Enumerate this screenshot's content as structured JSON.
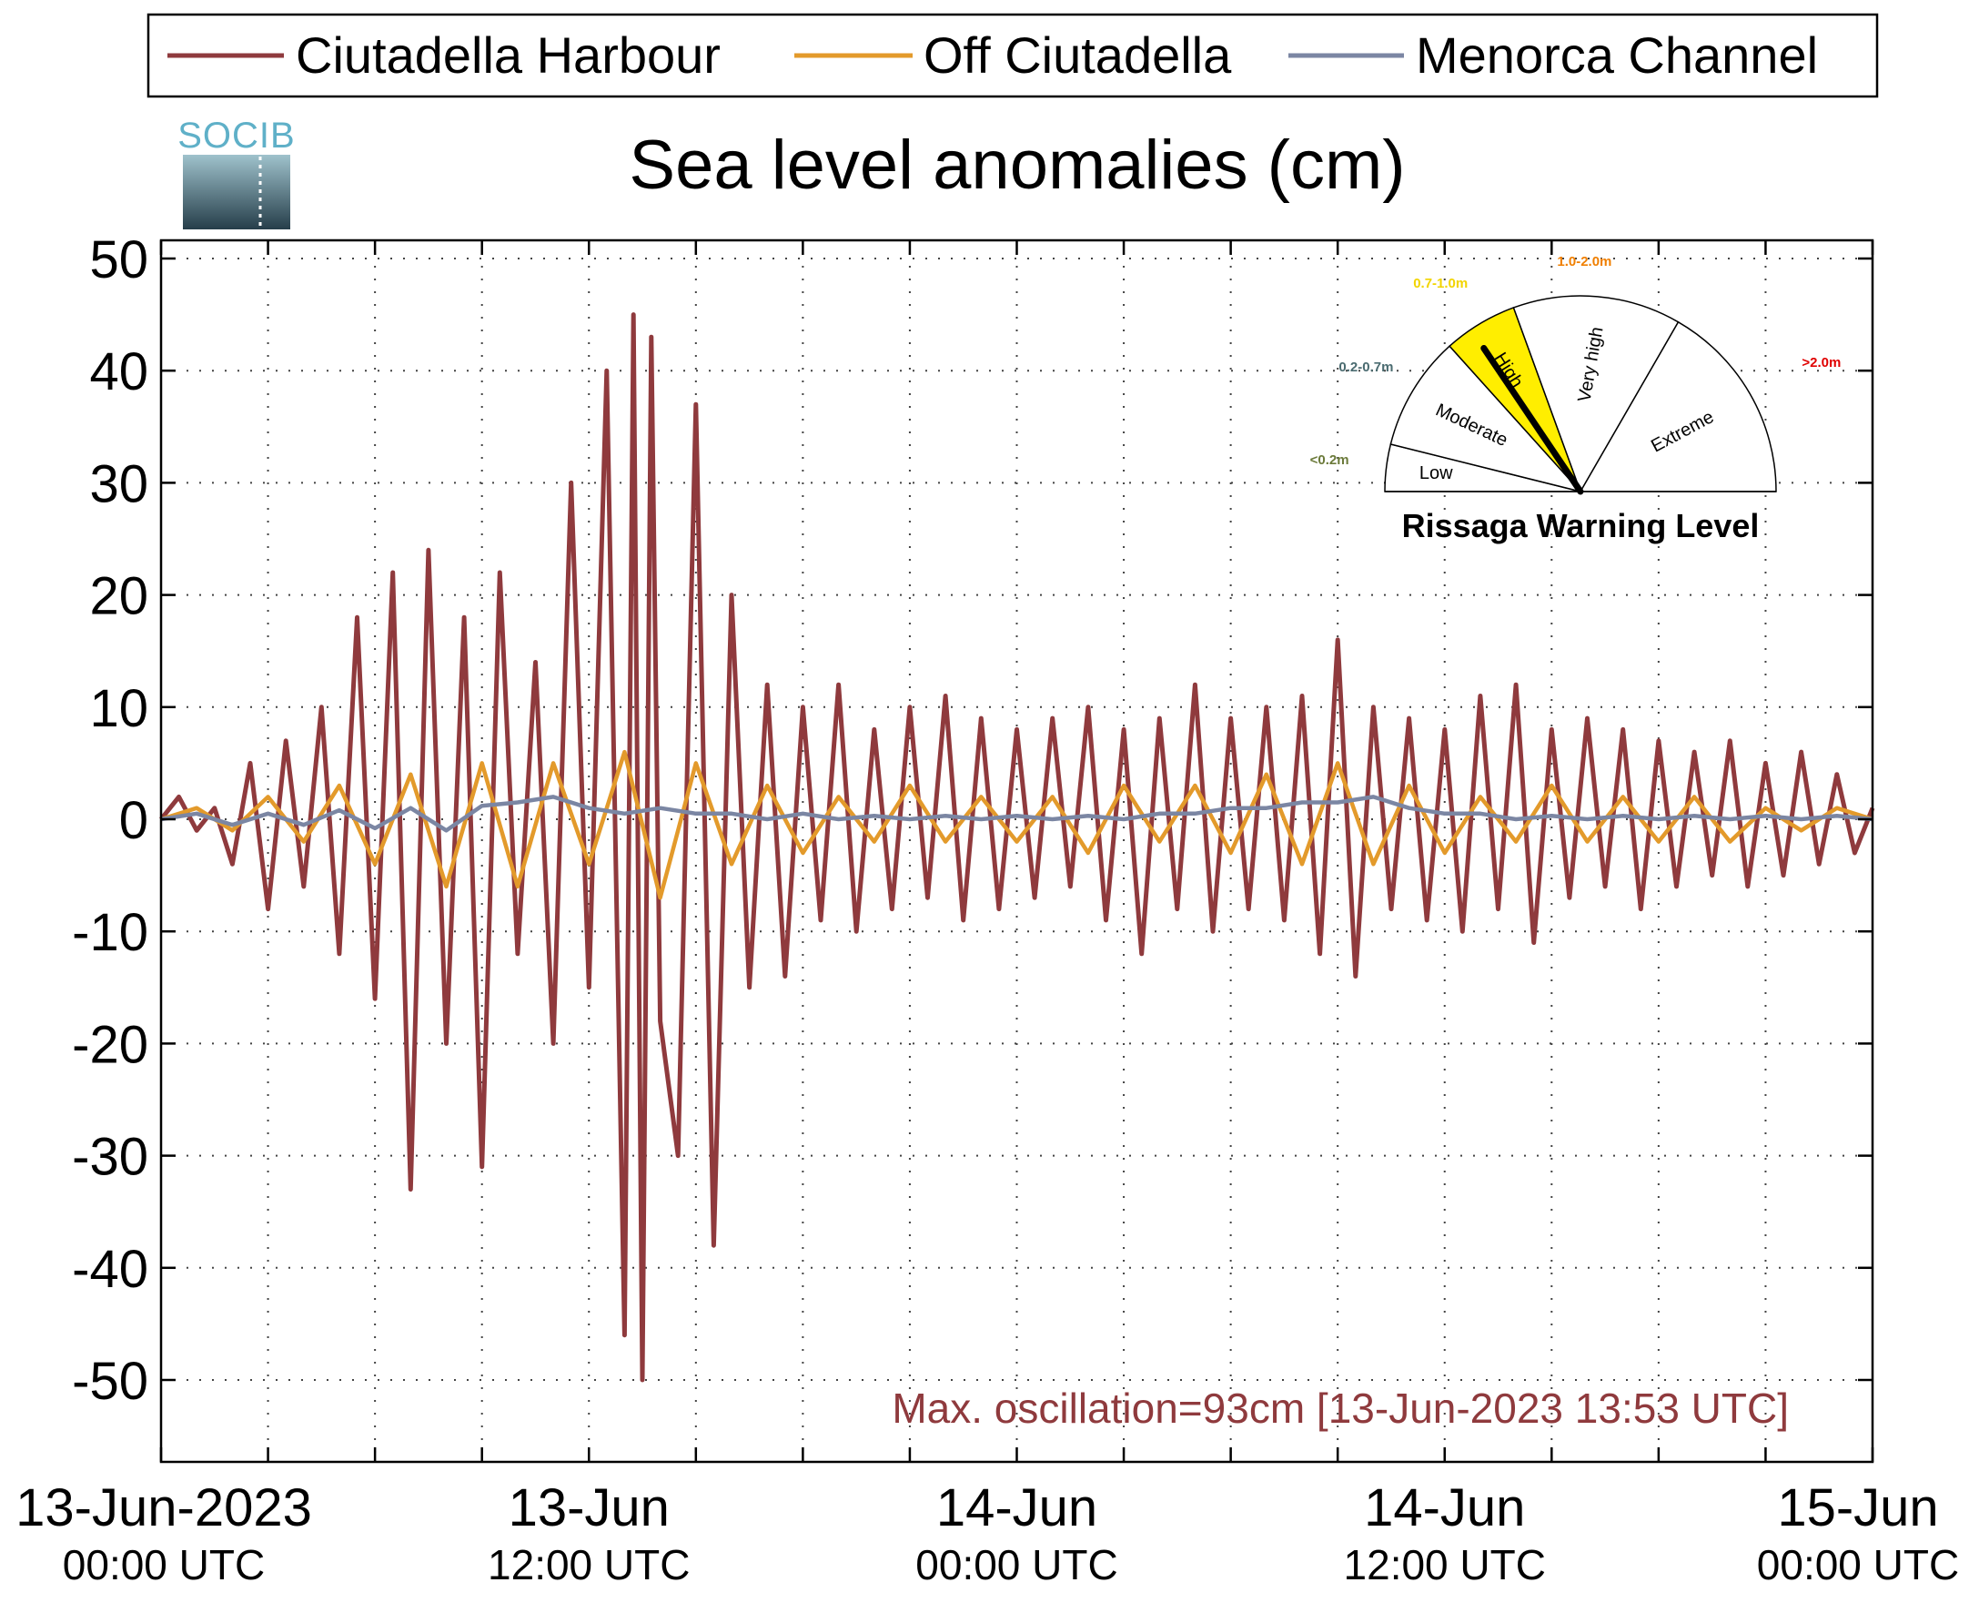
{
  "legend": {
    "position": "top",
    "entries": [
      {
        "label": "Ciutadella Harbour",
        "color": "#8f3a3d"
      },
      {
        "label": "Off Ciutadella",
        "color": "#e39a2b"
      },
      {
        "label": "Menorca Channel",
        "color": "#7b86a3"
      }
    ]
  },
  "logo_text": "SOCIB",
  "chart_data": {
    "type": "line",
    "title": "Sea level anomalies (cm)",
    "xlabel": "",
    "ylabel": "",
    "x_unit": "hours since 13-Jun-2023 00:00 UTC",
    "xlim": [
      0,
      48
    ],
    "ylim": [
      -50,
      50
    ],
    "y_ticks": [
      "50",
      "40",
      "30",
      "20",
      "10",
      "0",
      "-10",
      "-20",
      "-30",
      "-40",
      "-50"
    ],
    "x_ticks": [
      {
        "date": "13-Jun-2023",
        "time": "00:00 UTC"
      },
      {
        "date": "13-Jun",
        "time": "12:00 UTC"
      },
      {
        "date": "14-Jun",
        "time": "00:00 UTC"
      },
      {
        "date": "14-Jun",
        "time": "12:00 UTC"
      },
      {
        "date": "15-Jun",
        "time": "00:00 UTC"
      }
    ],
    "grid": true,
    "annotation": "Max. oscillation=93cm [13-Jun-2023 13:53 UTC]",
    "series": [
      {
        "name": "Ciutadella Harbour",
        "color": "#8f3a3d",
        "x": [
          0,
          0.5,
          1,
          1.5,
          2,
          2.5,
          3,
          3.5,
          4,
          4.5,
          5,
          5.5,
          6,
          6.5,
          7,
          7.5,
          8,
          8.5,
          9,
          9.5,
          10,
          10.5,
          11,
          11.5,
          12,
          12.5,
          13,
          13.25,
          13.5,
          13.75,
          14,
          14.5,
          15,
          15.5,
          16,
          16.5,
          17,
          17.5,
          18,
          18.5,
          19,
          19.5,
          20,
          20.5,
          21,
          21.5,
          22,
          22.5,
          23,
          23.5,
          24,
          24.5,
          25,
          25.5,
          26,
          26.5,
          27,
          27.5,
          28,
          28.5,
          29,
          29.5,
          30,
          30.5,
          31,
          31.5,
          32,
          32.5,
          33,
          33.5,
          34,
          34.5,
          35,
          35.5,
          36,
          36.5,
          37,
          37.5,
          38,
          38.5,
          39,
          39.5,
          40,
          40.5,
          41,
          41.5,
          42,
          42.5,
          43,
          43.5,
          44,
          44.5,
          45,
          45.5,
          46,
          46.5,
          47,
          47.5,
          48
        ],
        "y": [
          0,
          2,
          -1,
          1,
          -4,
          5,
          -8,
          7,
          -6,
          10,
          -12,
          18,
          -16,
          22,
          -33,
          24,
          -20,
          18,
          -31,
          22,
          -12,
          14,
          -20,
          30,
          -15,
          40,
          -46,
          45,
          -50,
          43,
          -18,
          -30,
          37,
          -38,
          20,
          -15,
          12,
          -14,
          10,
          -9,
          12,
          -10,
          8,
          -8,
          10,
          -7,
          11,
          -9,
          9,
          -8,
          8,
          -7,
          9,
          -6,
          10,
          -9,
          8,
          -12,
          9,
          -8,
          12,
          -10,
          9,
          -8,
          10,
          -9,
          11,
          -12,
          16,
          -14,
          10,
          -8,
          9,
          -9,
          8,
          -10,
          11,
          -8,
          12,
          -11,
          8,
          -7,
          9,
          -6,
          8,
          -8,
          7,
          -6,
          6,
          -5,
          7,
          -6,
          5,
          -5,
          6,
          -4,
          4,
          -3,
          1
        ]
      },
      {
        "name": "Off Ciutadella",
        "color": "#e39a2b",
        "x": [
          0,
          1,
          2,
          3,
          4,
          5,
          6,
          7,
          8,
          9,
          10,
          11,
          12,
          13,
          14,
          15,
          16,
          17,
          18,
          19,
          20,
          21,
          22,
          23,
          24,
          25,
          26,
          27,
          28,
          29,
          30,
          31,
          32,
          33,
          34,
          35,
          36,
          37,
          38,
          39,
          40,
          41,
          42,
          43,
          44,
          45,
          46,
          47,
          48
        ],
        "y": [
          0,
          1,
          -1,
          2,
          -2,
          3,
          -4,
          4,
          -6,
          5,
          -6,
          5,
          -4,
          6,
          -7,
          5,
          -4,
          3,
          -3,
          2,
          -2,
          3,
          -2,
          2,
          -2,
          2,
          -3,
          3,
          -2,
          3,
          -3,
          4,
          -4,
          5,
          -4,
          3,
          -3,
          2,
          -2,
          3,
          -2,
          2,
          -2,
          2,
          -2,
          1,
          -1,
          1,
          0
        ]
      },
      {
        "name": "Menorca Channel",
        "color": "#7b86a3",
        "x": [
          0,
          1,
          2,
          3,
          4,
          5,
          6,
          7,
          8,
          9,
          10,
          11,
          12,
          13,
          14,
          15,
          16,
          17,
          18,
          19,
          20,
          21,
          22,
          23,
          24,
          25,
          26,
          27,
          28,
          29,
          30,
          31,
          32,
          33,
          34,
          35,
          36,
          37,
          38,
          39,
          40,
          41,
          42,
          43,
          44,
          45,
          46,
          47,
          48
        ],
        "y": [
          0,
          0.5,
          -0.5,
          0.5,
          -0.5,
          0.8,
          -0.8,
          1,
          -1,
          1.2,
          1.5,
          2,
          1,
          0.5,
          1,
          0.5,
          0.5,
          0,
          0.5,
          0,
          0.3,
          0,
          0.3,
          0,
          0.3,
          0,
          0.3,
          0,
          0.5,
          0.5,
          1,
          1,
          1.5,
          1.5,
          2,
          1,
          0.5,
          0.5,
          0,
          0.3,
          0,
          0.3,
          0,
          0.3,
          0,
          0.3,
          0,
          0.3,
          0
        ]
      }
    ]
  },
  "gauge": {
    "title": "Rissaga Warning Level",
    "current_level": "High",
    "sectors": [
      {
        "name": "Low",
        "range": "<0.2m",
        "range_color": "#6b7a3a",
        "fill": "#ffffff"
      },
      {
        "name": "Moderate",
        "range": "0.2-0.7m",
        "range_color": "#4a6b70",
        "fill": "#ffffff"
      },
      {
        "name": "High",
        "range": "0.7-1.0m",
        "range_color": "#f2d400",
        "fill": "#ffee00"
      },
      {
        "name": "Very high",
        "range": "1.0-2.0m",
        "range_color": "#f07f00",
        "fill": "#ffffff"
      },
      {
        "name": "Extreme",
        "range": ">2.0m",
        "range_color": "#e00000",
        "fill": "#ffffff"
      }
    ]
  }
}
